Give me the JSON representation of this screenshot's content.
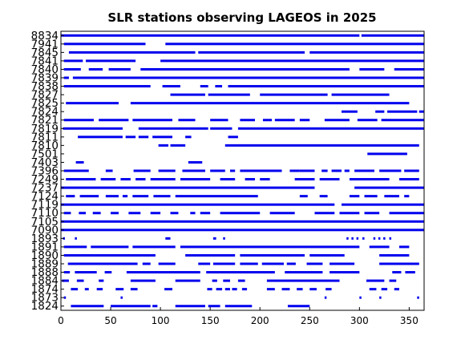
{
  "chart_data": {
    "type": "bar",
    "title": "SLR stations observing LAGEOS in 2025",
    "xlabel": "",
    "ylabel": "",
    "xlim": [
      0,
      365
    ],
    "xticks": [
      0,
      50,
      100,
      150,
      200,
      250,
      300,
      350
    ],
    "grid": false,
    "bar_color": "#0000ee",
    "stations": [
      {
        "label": "1824",
        "segments": [
          [
            10,
            43
          ],
          [
            50,
            90
          ],
          [
            92,
            97
          ],
          [
            115,
            145
          ],
          [
            148,
            160
          ],
          [
            165,
            192
          ],
          [
            228,
            250
          ]
        ]
      },
      {
        "label": "1873",
        "segments": [
          [
            3,
            5
          ],
          [
            60,
            62
          ],
          [
            265,
            267
          ],
          [
            300,
            302
          ],
          [
            320,
            322
          ],
          [
            358,
            360
          ]
        ]
      },
      {
        "label": "1874",
        "segments": [
          [
            10,
            17
          ],
          [
            24,
            28
          ],
          [
            36,
            42
          ],
          [
            55,
            63
          ],
          [
            70,
            77
          ],
          [
            104,
            112
          ],
          [
            147,
            152
          ],
          [
            156,
            162
          ],
          [
            165,
            170
          ],
          [
            172,
            177
          ],
          [
            182,
            187
          ],
          [
            207,
            215
          ],
          [
            222,
            230
          ],
          [
            237,
            243
          ],
          [
            250,
            257
          ],
          [
            266,
            272
          ],
          [
            310,
            317
          ],
          [
            322,
            328
          ],
          [
            335,
            340
          ]
        ]
      },
      {
        "label": "1884",
        "segments": [
          [
            1,
            8
          ],
          [
            16,
            23
          ],
          [
            38,
            43
          ],
          [
            70,
            95
          ],
          [
            115,
            140
          ],
          [
            152,
            157
          ],
          [
            163,
            170
          ],
          [
            178,
            185
          ],
          [
            207,
            280
          ],
          [
            307,
            325
          ],
          [
            330,
            337
          ]
        ]
      },
      {
        "label": "1888",
        "segments": [
          [
            3,
            9
          ],
          [
            14,
            36
          ],
          [
            44,
            51
          ],
          [
            66,
            140
          ],
          [
            146,
            215
          ],
          [
            225,
            263
          ],
          [
            270,
            300
          ],
          [
            333,
            342
          ],
          [
            346,
            356
          ]
        ]
      },
      {
        "label": "1889",
        "segments": [
          [
            7,
            77
          ],
          [
            82,
            90
          ],
          [
            98,
            115
          ],
          [
            138,
            150
          ],
          [
            153,
            175
          ],
          [
            180,
            198
          ],
          [
            202,
            224
          ],
          [
            227,
            236
          ],
          [
            247,
            263
          ],
          [
            270,
            295
          ],
          [
            320,
            360
          ]
        ]
      },
      {
        "label": "1890",
        "segments": [
          [
            3,
            95
          ],
          [
            125,
            175
          ],
          [
            180,
            245
          ],
          [
            250,
            285
          ],
          [
            320,
            350
          ]
        ]
      },
      {
        "label": "1891",
        "segments": [
          [
            3,
            26
          ],
          [
            30,
            68
          ],
          [
            72,
            115
          ],
          [
            120,
            300
          ],
          [
            310,
            330
          ],
          [
            340,
            350
          ]
        ]
      },
      {
        "label": "1893",
        "segments": [
          [
            2,
            4
          ],
          [
            14,
            16
          ],
          [
            105,
            110
          ],
          [
            153,
            156
          ],
          [
            163,
            165
          ],
          [
            287,
            289
          ],
          [
            292,
            294
          ],
          [
            297,
            299
          ],
          [
            303,
            305
          ],
          [
            314,
            316
          ],
          [
            319,
            321
          ],
          [
            324,
            326
          ],
          [
            330,
            332
          ]
        ]
      },
      {
        "label": "7090",
        "segments": [
          [
            0,
            365
          ]
        ]
      },
      {
        "label": "7105",
        "segments": [
          [
            0,
            365
          ]
        ]
      },
      {
        "label": "7110",
        "segments": [
          [
            3,
            10
          ],
          [
            18,
            25
          ],
          [
            32,
            40
          ],
          [
            50,
            58
          ],
          [
            68,
            80
          ],
          [
            90,
            100
          ],
          [
            110,
            118
          ],
          [
            130,
            135
          ],
          [
            140,
            150
          ],
          [
            160,
            200
          ],
          [
            210,
            235
          ],
          [
            255,
            275
          ],
          [
            280,
            300
          ],
          [
            305,
            320
          ],
          [
            330,
            365
          ]
        ]
      },
      {
        "label": "7119",
        "segments": [
          [
            0,
            275
          ],
          [
            282,
            365
          ]
        ]
      },
      {
        "label": "7124",
        "segments": [
          [
            5,
            14
          ],
          [
            19,
            38
          ],
          [
            45,
            58
          ],
          [
            62,
            67
          ],
          [
            72,
            88
          ],
          [
            93,
            110
          ],
          [
            115,
            198
          ],
          [
            240,
            248
          ],
          [
            260,
            268
          ],
          [
            290,
            300
          ],
          [
            305,
            318
          ],
          [
            325,
            340
          ],
          [
            345,
            350
          ]
        ]
      },
      {
        "label": "7237",
        "segments": [
          [
            0,
            255
          ],
          [
            295,
            365
          ]
        ]
      },
      {
        "label": "7249",
        "segments": [
          [
            5,
            35
          ],
          [
            40,
            55
          ],
          [
            60,
            70
          ],
          [
            75,
            85
          ],
          [
            90,
            115
          ],
          [
            120,
            150
          ],
          [
            160,
            175
          ],
          [
            185,
            195
          ],
          [
            200,
            210
          ],
          [
            235,
            255
          ],
          [
            260,
            280
          ],
          [
            290,
            330
          ],
          [
            340,
            360
          ]
        ]
      },
      {
        "label": "7396",
        "segments": [
          [
            3,
            28
          ],
          [
            45,
            52
          ],
          [
            73,
            90
          ],
          [
            98,
            115
          ],
          [
            122,
            145
          ],
          [
            150,
            165
          ],
          [
            170,
            175
          ],
          [
            180,
            222
          ],
          [
            230,
            240
          ],
          [
            240,
            255
          ],
          [
            262,
            268
          ],
          [
            272,
            282
          ],
          [
            285,
            290
          ],
          [
            295,
            315
          ],
          [
            320,
            342
          ],
          [
            345,
            360
          ]
        ]
      },
      {
        "label": "7403",
        "segments": [
          [
            15,
            23
          ],
          [
            128,
            142
          ]
        ]
      },
      {
        "label": "7501",
        "segments": [
          [
            308,
            348
          ]
        ]
      },
      {
        "label": "7810",
        "segments": [
          [
            98,
            108
          ],
          [
            110,
            125
          ],
          [
            165,
            360
          ]
        ]
      },
      {
        "label": "7811",
        "segments": [
          [
            17,
            62
          ],
          [
            65,
            75
          ],
          [
            78,
            88
          ],
          [
            92,
            112
          ],
          [
            125,
            131
          ],
          [
            168,
            178
          ]
        ]
      },
      {
        "label": "7819",
        "segments": [
          [
            2,
            62
          ],
          [
            78,
            148
          ],
          [
            150,
            172
          ],
          [
            178,
            368
          ]
        ]
      },
      {
        "label": "7821",
        "segments": [
          [
            3,
            33
          ],
          [
            38,
            68
          ],
          [
            72,
            112
          ],
          [
            118,
            135
          ],
          [
            150,
            168
          ],
          [
            180,
            195
          ],
          [
            203,
            212
          ],
          [
            215,
            235
          ],
          [
            240,
            250
          ],
          [
            265,
            290
          ],
          [
            298,
            318
          ],
          [
            322,
            365
          ]
        ]
      },
      {
        "label": "7824",
        "segments": [
          [
            282,
            298
          ],
          [
            316,
            325
          ],
          [
            328,
            358
          ],
          [
            360,
            365
          ]
        ]
      },
      {
        "label": "7825",
        "segments": [
          [
            5,
            58
          ],
          [
            70,
            350
          ]
        ]
      },
      {
        "label": "7827",
        "segments": [
          [
            110,
            145
          ],
          [
            148,
            190
          ],
          [
            200,
            268
          ],
          [
            272,
            330
          ]
        ]
      },
      {
        "label": "7838",
        "segments": [
          [
            3,
            90
          ],
          [
            102,
            120
          ],
          [
            140,
            148
          ],
          [
            155,
            162
          ],
          [
            168,
            365
          ]
        ]
      },
      {
        "label": "7839",
        "segments": [
          [
            3,
            8
          ],
          [
            12,
            365
          ]
        ]
      },
      {
        "label": "7840",
        "segments": [
          [
            3,
            20
          ],
          [
            28,
            42
          ],
          [
            48,
            70
          ],
          [
            80,
            290
          ],
          [
            300,
            325
          ],
          [
            335,
            365
          ]
        ]
      },
      {
        "label": "7841",
        "segments": [
          [
            3,
            22
          ],
          [
            25,
            75
          ],
          [
            100,
            365
          ]
        ]
      },
      {
        "label": "7845",
        "segments": [
          [
            8,
            135
          ],
          [
            138,
            245
          ],
          [
            250,
            365
          ]
        ]
      },
      {
        "label": "7941",
        "segments": [
          [
            3,
            85
          ],
          [
            105,
            365
          ]
        ]
      },
      {
        "label": "8834",
        "segments": [
          [
            0,
            300
          ],
          [
            302,
            365
          ]
        ]
      }
    ]
  }
}
